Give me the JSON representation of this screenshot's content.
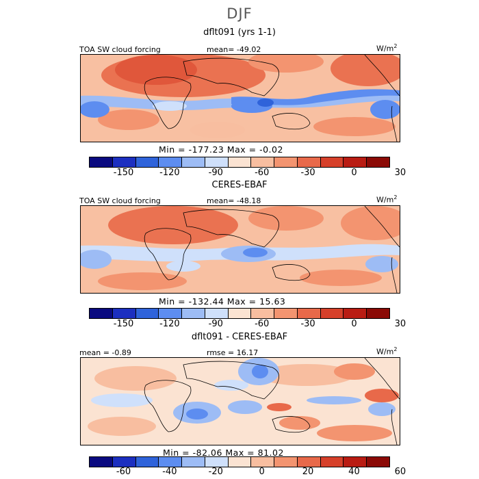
{
  "title": "DJF",
  "panels": [
    {
      "id": "model",
      "title": "dflt091 (yrs 1-1)",
      "left_label": "TOA SW cloud forcing",
      "center_label": "mean= -49.02",
      "units_base": "W/m",
      "units_sup": "2",
      "minmax": "Min = -177.23 Max =  -0.02",
      "colorbar": {
        "colors": [
          "#0a0a80",
          "#1c2fc0",
          "#2f63da",
          "#5d8df0",
          "#9dbcf5",
          "#cfe0fb",
          "#fbe3d2",
          "#f8bea0",
          "#f39470",
          "#e8694a",
          "#d6402a",
          "#b91c13",
          "#8b0a06"
        ],
        "ticks": [
          "-150",
          "-120",
          "-90",
          "-60",
          "-30",
          "0",
          "30"
        ]
      }
    },
    {
      "id": "obs",
      "title": "CERES-EBAF",
      "left_label": "TOA SW cloud forcing",
      "center_label": "mean= -48.18",
      "units_base": "W/m",
      "units_sup": "2",
      "minmax": "Min = -132.44 Max =  15.63",
      "colorbar": {
        "colors": [
          "#0a0a80",
          "#1c2fc0",
          "#2f63da",
          "#5d8df0",
          "#9dbcf5",
          "#cfe0fb",
          "#fbe3d2",
          "#f8bea0",
          "#f39470",
          "#e8694a",
          "#d6402a",
          "#b91c13",
          "#8b0a06"
        ],
        "ticks": [
          "-150",
          "-120",
          "-90",
          "-60",
          "-30",
          "0",
          "30"
        ]
      }
    },
    {
      "id": "diff",
      "title": "dflt091 - CERES-EBAF",
      "left_label": "mean =  -0.89",
      "center_label": "rmse =  16.17",
      "units_base": "W/m",
      "units_sup": "2",
      "minmax": "Min = -82.06 Max =  81.02",
      "colorbar": {
        "colors": [
          "#0a0a80",
          "#1c2fc0",
          "#2f63da",
          "#5d8df0",
          "#9dbcf5",
          "#cfe0fb",
          "#fbe3d2",
          "#f8bea0",
          "#f39470",
          "#e8694a",
          "#d6402a",
          "#b91c13",
          "#8b0a06"
        ],
        "ticks": [
          "-60",
          "-40",
          "-20",
          "0",
          "20",
          "40",
          "60"
        ]
      }
    }
  ]
}
